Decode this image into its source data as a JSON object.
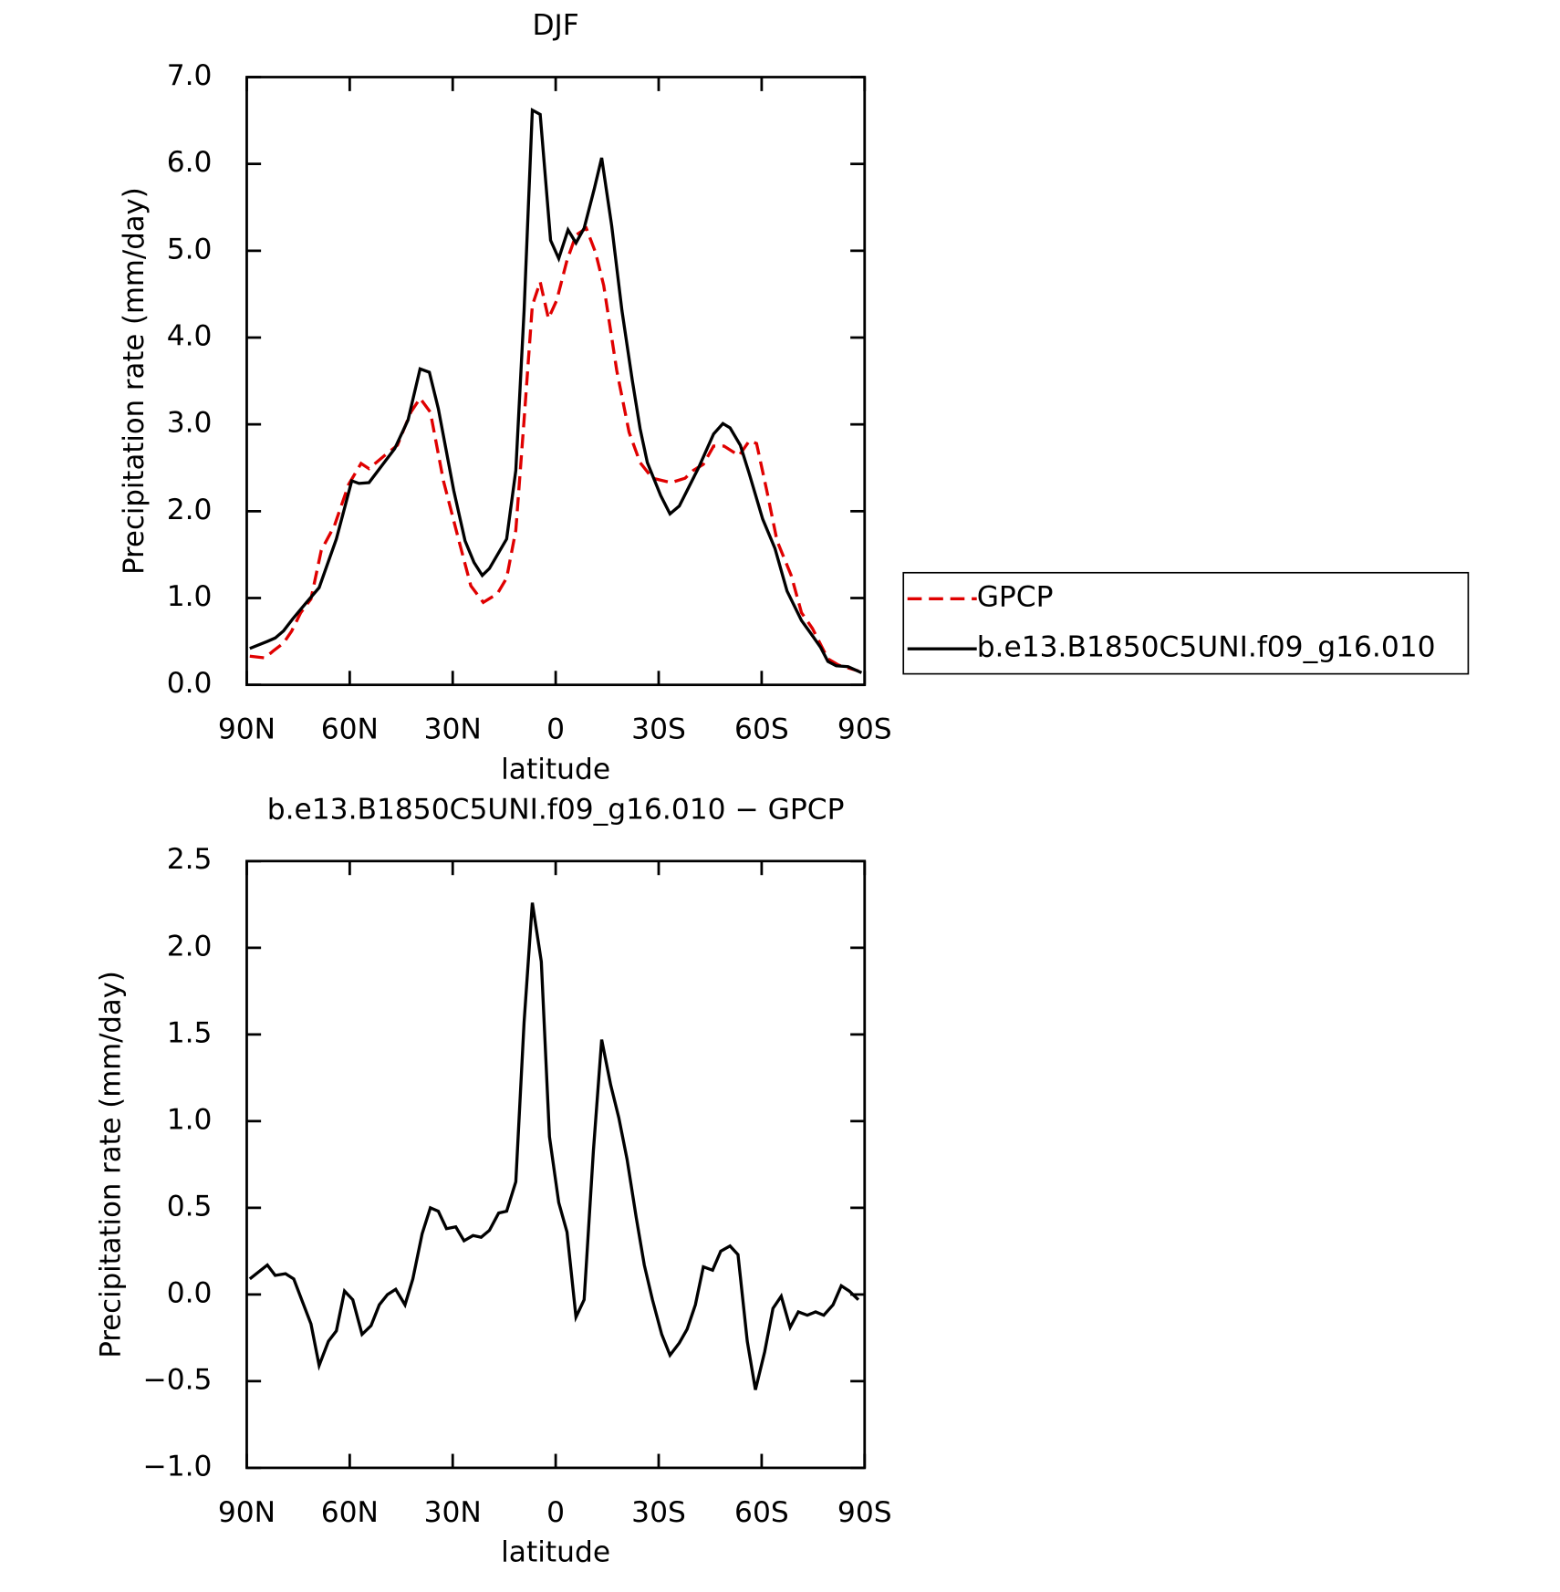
{
  "chart_data": [
    {
      "type": "line",
      "title": "DJF",
      "xlabel": "latitude",
      "ylabel": "Precipitation rate (mm/day)",
      "xlim": [
        90,
        -90
      ],
      "xticks": [
        {
          "value": 90,
          "label": "90N"
        },
        {
          "value": 60,
          "label": "60N"
        },
        {
          "value": 30,
          "label": "30N"
        },
        0,
        {
          "value": -30,
          "label": "30S"
        },
        {
          "value": -60,
          "label": "60S"
        },
        {
          "value": -90,
          "label": "90S"
        }
      ],
      "ylim": [
        0,
        7
      ],
      "yticks": [
        {
          "value": 0,
          "label": "0.0"
        },
        {
          "value": 1,
          "label": "1.0"
        },
        {
          "value": 2,
          "label": "2.0"
        },
        {
          "value": 3,
          "label": "3.0"
        },
        {
          "value": 4,
          "label": "4.0"
        },
        {
          "value": 5,
          "label": "5.0"
        },
        {
          "value": 6,
          "label": "6.0"
        },
        {
          "value": 7,
          "label": "7.0"
        }
      ],
      "legend": "right",
      "series": [
        {
          "name": "GPCP",
          "color": "#e00000",
          "dash": true,
          "x": [
            89.1,
            84.7,
            82.3,
            79.3,
            76.9,
            74.3,
            71.3,
            68.3,
            64.5,
            60.3,
            56.7,
            54.4,
            49.6,
            46.1,
            42.2,
            39.5,
            36.5,
            32.7,
            28.2,
            24.7,
            21.1,
            17,
            14.3,
            11.6,
            9.2,
            6.8,
            4.5,
            2.1,
            -0.3,
            -3.3,
            -5.9,
            -8.9,
            -11.6,
            -14,
            -17.8,
            -21.4,
            -24.6,
            -28.2,
            -33.6,
            -37.7,
            -40.1,
            -43,
            -46,
            -49,
            -53.4,
            -56.4,
            -58.5,
            -61.5,
            -64.5,
            -68.6,
            -71.6,
            -74.8,
            -79.3,
            -82.3,
            -88.2
          ],
          "values": [
            0.33,
            0.31,
            0.39,
            0.48,
            0.62,
            0.83,
            0.99,
            1.55,
            1.83,
            2.31,
            2.55,
            2.49,
            2.65,
            2.76,
            3.14,
            3.3,
            3.14,
            2.35,
            1.66,
            1.14,
            0.95,
            1.05,
            1.23,
            1.78,
            3.05,
            4.37,
            4.64,
            4.22,
            4.43,
            4.89,
            5.18,
            5.26,
            4.98,
            4.6,
            3.62,
            2.91,
            2.56,
            2.38,
            2.33,
            2.38,
            2.47,
            2.54,
            2.75,
            2.75,
            2.64,
            2.81,
            2.78,
            2.24,
            1.66,
            1.26,
            0.83,
            0.65,
            0.3,
            0.23,
            0.16
          ]
        },
        {
          "name": "b.e13.B1850C5UNI.f09_g16.010",
          "color": "#000000",
          "dash": false,
          "x": [
            89.1,
            84,
            81.7,
            79.3,
            76.6,
            73,
            68.9,
            63.9,
            59.4,
            57.3,
            54.4,
            46.9,
            43,
            39.5,
            36.8,
            34.2,
            29.7,
            26.4,
            23.8,
            21.4,
            19.3,
            14.3,
            11.6,
            9.2,
            6.8,
            4.5,
            1.5,
            -0.9,
            -3.6,
            -5.9,
            -8.3,
            -11.3,
            -13.4,
            -16.3,
            -19.3,
            -22.3,
            -24.6,
            -26.7,
            -30.6,
            -33.3,
            -36,
            -41.6,
            -46,
            -48.7,
            -50.8,
            -53.8,
            -56.4,
            -60.3,
            -63.9,
            -67.4,
            -71.6,
            -74.2,
            -77.2,
            -79.3,
            -81.7,
            -85.2,
            -89.1
          ],
          "values": [
            0.42,
            0.5,
            0.54,
            0.62,
            0.76,
            0.93,
            1.12,
            1.68,
            2.35,
            2.32,
            2.33,
            2.72,
            3.05,
            3.64,
            3.6,
            3.18,
            2.24,
            1.66,
            1.41,
            1.26,
            1.34,
            1.68,
            2.47,
            4.31,
            6.62,
            6.57,
            5.12,
            4.91,
            5.24,
            5.09,
            5.26,
            5.72,
            6.07,
            5.29,
            4.31,
            3.51,
            2.95,
            2.56,
            2.18,
            1.97,
            2.06,
            2.5,
            2.89,
            3.01,
            2.96,
            2.76,
            2.43,
            1.91,
            1.57,
            1.08,
            0.74,
            0.6,
            0.43,
            0.27,
            0.22,
            0.21,
            0.14
          ]
        }
      ]
    },
    {
      "type": "line",
      "title": "b.e13.B1850C5UNI.f09_g16.010 − GPCP",
      "xlabel": "latitude",
      "ylabel": "Precipitation rate (mm/day)",
      "xlim": [
        90,
        -90
      ],
      "xticks": [
        {
          "value": 90,
          "label": "90N"
        },
        {
          "value": 60,
          "label": "60N"
        },
        {
          "value": 30,
          "label": "30N"
        },
        0,
        {
          "value": -30,
          "label": "30S"
        },
        {
          "value": -60,
          "label": "60S"
        },
        {
          "value": -90,
          "label": "90S"
        }
      ],
      "ylim": [
        -1,
        2.5
      ],
      "yticks": [
        {
          "value": -1,
          "label": "−1.0"
        },
        {
          "value": -0.5,
          "label": "−0.5"
        },
        {
          "value": 0,
          "label": "0.0"
        },
        0.5,
        {
          "value": 1,
          "label": "1.0"
        },
        1.5,
        {
          "value": 2,
          "label": "2.0"
        },
        2.5
      ],
      "series": [
        {
          "color": "#000000",
          "dash": false,
          "x": [
            89.1,
            84,
            81.7,
            78.7,
            76.3,
            74,
            71.3,
            68.9,
            66.2,
            63.9,
            61.5,
            59.1,
            56.4,
            53.8,
            51.4,
            49,
            46.6,
            43.9,
            41.6,
            38.9,
            36.5,
            34.2,
            31.8,
            29.1,
            26.7,
            24.1,
            21.7,
            19.3,
            16.6,
            14.3,
            11.6,
            9.2,
            6.8,
            4.2,
            1.8,
            -0.9,
            -3.3,
            -5.9,
            -8.3,
            -11,
            -13.4,
            -16,
            -18.4,
            -20.8,
            -23.5,
            -25.8,
            -28.2,
            -30.9,
            -33.3,
            -36,
            -38.3,
            -40.7,
            -43,
            -45.7,
            -48.1,
            -50.8,
            -53.1,
            -55.8,
            -58.2,
            -60.9,
            -63.3,
            -65.7,
            -68.3,
            -70.7,
            -73.3,
            -75.7,
            -78.1,
            -80.8,
            -83.2,
            -85.5,
            -88.2
          ],
          "values": [
            0.09,
            0.17,
            0.11,
            0.12,
            0.09,
            -0.03,
            -0.17,
            -0.41,
            -0.27,
            -0.21,
            0.02,
            -0.03,
            -0.23,
            -0.18,
            -0.06,
            0,
            0.03,
            -0.06,
            0.09,
            0.35,
            0.5,
            0.48,
            0.38,
            0.39,
            0.31,
            0.34,
            0.33,
            0.37,
            0.47,
            0.48,
            0.65,
            1.57,
            2.26,
            1.92,
            0.91,
            0.53,
            0.36,
            -0.13,
            -0.03,
            0.83,
            1.47,
            1.21,
            1.02,
            0.78,
            0.44,
            0.17,
            -0.03,
            -0.23,
            -0.35,
            -0.28,
            -0.2,
            -0.06,
            0.16,
            0.14,
            0.25,
            0.28,
            0.23,
            -0.27,
            -0.55,
            -0.33,
            -0.08,
            -0.01,
            -0.19,
            -0.1,
            -0.12,
            -0.1,
            -0.12,
            -0.06,
            0.05,
            0.02,
            -0.03
          ]
        }
      ]
    }
  ]
}
